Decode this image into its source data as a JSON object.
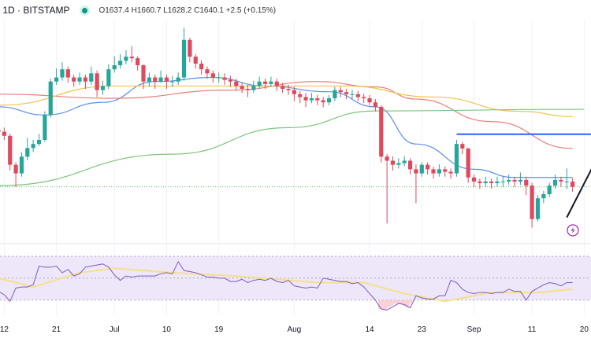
{
  "header": {
    "symbol_text": "· 1D · BITSTAMP",
    "ohlc_text": "O1637.4 H1660.7 L1628.2 C1640.1 +2.5 (+0.15%)",
    "status_dot_color": "#089981"
  },
  "chart_data": {
    "type": "candlestick",
    "title": "· 1D · BITSTAMP",
    "x_ticks": [
      {
        "label": "12",
        "i": 1
      },
      {
        "label": "21",
        "i": 10
      },
      {
        "label": "Jul",
        "i": 20
      },
      {
        "label": "10",
        "i": 29
      },
      {
        "label": "19",
        "i": 38
      },
      {
        "label": "Aug",
        "i": 51
      },
      {
        "label": "14",
        "i": 64
      },
      {
        "label": "23",
        "i": 73
      },
      {
        "label": "Sep",
        "i": 82
      },
      {
        "label": "11",
        "i": 92
      },
      {
        "label": "20",
        "i": 101
      }
    ],
    "price_range": [
      1520,
      2040
    ],
    "first_open": 1780,
    "close": [
      1775,
      1765,
      1694,
      1673,
      1714,
      1735,
      1745,
      1755,
      1816,
      1898,
      1908,
      1928,
      1908,
      1898,
      1908,
      1898,
      1918,
      1877,
      1887,
      1928,
      1938,
      1949,
      1959,
      1955,
      1938,
      1898,
      1908,
      1898,
      1908,
      1898,
      1898,
      1908,
      2000,
      1959,
      1942,
      1928,
      1918,
      1908,
      1908,
      1902,
      1898,
      1887,
      1880,
      1877,
      1887,
      1898,
      1892,
      1898,
      1887,
      1880,
      1877,
      1867,
      1860,
      1852,
      1857,
      1852,
      1847,
      1857,
      1877,
      1872,
      1867,
      1867,
      1860,
      1857,
      1847,
      1836,
      1714,
      1704,
      1694,
      1698,
      1704,
      1683,
      1673,
      1694,
      1683,
      1673,
      1683,
      1677,
      1673,
      1745,
      1734,
      1663,
      1653,
      1649,
      1653,
      1649,
      1653,
      1653,
      1657,
      1653,
      1657,
      1643,
      1561,
      1612,
      1622,
      1643,
      1657,
      1653,
      1653,
      1640
    ],
    "high": [
      1790,
      1785,
      1770,
      1700,
      1725,
      1760,
      1755,
      1770,
      1825,
      1905,
      1930,
      1945,
      1935,
      1915,
      1920,
      1915,
      1935,
      1925,
      1900,
      1940,
      1960,
      1965,
      1975,
      1985,
      1960,
      1940,
      1920,
      1915,
      1925,
      1915,
      1912,
      1920,
      2030,
      2005,
      1965,
      1950,
      1935,
      1925,
      1920,
      1918,
      1912,
      1905,
      1895,
      1890,
      1900,
      1910,
      1905,
      1910,
      1905,
      1895,
      1890,
      1885,
      1875,
      1870,
      1870,
      1865,
      1860,
      1865,
      1885,
      1885,
      1880,
      1878,
      1875,
      1868,
      1865,
      1855,
      1840,
      1720,
      1715,
      1710,
      1715,
      1710,
      1695,
      1700,
      1700,
      1690,
      1695,
      1690,
      1685,
      1755,
      1750,
      1735,
      1670,
      1660,
      1665,
      1660,
      1665,
      1665,
      1670,
      1665,
      1675,
      1665,
      1650,
      1620,
      1630,
      1650,
      1670,
      1665,
      1685,
      1661
    ],
    "low": [
      1765,
      1755,
      1680,
      1640,
      1665,
      1705,
      1725,
      1740,
      1750,
      1810,
      1890,
      1900,
      1895,
      1885,
      1890,
      1880,
      1890,
      1860,
      1865,
      1880,
      1920,
      1930,
      1940,
      1945,
      1925,
      1880,
      1885,
      1880,
      1895,
      1880,
      1885,
      1890,
      1900,
      1945,
      1930,
      1915,
      1905,
      1895,
      1895,
      1890,
      1885,
      1875,
      1870,
      1860,
      1870,
      1880,
      1880,
      1885,
      1875,
      1870,
      1865,
      1850,
      1845,
      1835,
      1845,
      1840,
      1835,
      1840,
      1850,
      1860,
      1855,
      1855,
      1850,
      1845,
      1840,
      1825,
      1700,
      1550,
      1680,
      1685,
      1690,
      1670,
      1600,
      1665,
      1670,
      1660,
      1665,
      1665,
      1660,
      1665,
      1720,
      1650,
      1640,
      1635,
      1640,
      1635,
      1640,
      1640,
      1645,
      1640,
      1645,
      1620,
      1540,
      1555,
      1600,
      1615,
      1635,
      1640,
      1635,
      1628
    ],
    "moving_averages": [
      {
        "color": "#5b8def",
        "points": [
          [
            0,
            1836
          ],
          [
            8,
            1816
          ],
          [
            18,
            1847
          ],
          [
            27,
            1898
          ],
          [
            37,
            1908
          ],
          [
            46,
            1887
          ],
          [
            57,
            1873
          ],
          [
            65,
            1836
          ],
          [
            72,
            1745
          ],
          [
            82,
            1683
          ],
          [
            89,
            1663
          ],
          [
            99,
            1663
          ]
        ]
      },
      {
        "color": "#ef7b7b",
        "points": [
          [
            0,
            1867
          ],
          [
            20,
            1857
          ],
          [
            40,
            1877
          ],
          [
            55,
            1898
          ],
          [
            65,
            1885
          ],
          [
            72,
            1855
          ],
          [
            85,
            1800
          ],
          [
            99,
            1734
          ]
        ]
      },
      {
        "color": "#f2c14e",
        "points": [
          [
            0,
            1840
          ],
          [
            20,
            1887
          ],
          [
            60,
            1887
          ],
          [
            75,
            1860
          ],
          [
            90,
            1825
          ],
          [
            99,
            1812
          ]
        ]
      },
      {
        "color": "#7cc47c",
        "points": [
          [
            0,
            1643
          ],
          [
            30,
            1720
          ],
          [
            50,
            1785
          ],
          [
            65,
            1826
          ],
          [
            101,
            1830
          ]
        ]
      }
    ],
    "horizontal_line": {
      "price": 1769,
      "from_i": 79,
      "color": "#2962ff"
    },
    "last_price_line": {
      "price": 1640,
      "color": "#4caf50"
    },
    "trend_line": {
      "points": [
        [
          98,
          1565
        ],
        [
          102.5,
          1690
        ]
      ],
      "color": "#131722"
    },
    "rsi": {
      "levels": [
        70,
        50,
        30
      ],
      "range": [
        17,
        80
      ],
      "line_color": "#7e57c2",
      "ma_color": "#f5e08a",
      "values": [
        38,
        35,
        29,
        41,
        42,
        42,
        44,
        61,
        60,
        60,
        61,
        55,
        58,
        52,
        54,
        60,
        61,
        62,
        63,
        60,
        53,
        48,
        52,
        51,
        52,
        52,
        52,
        52,
        54,
        55,
        54,
        65,
        57,
        56,
        55,
        53,
        51,
        51,
        50,
        50,
        47,
        47,
        49,
        46,
        48,
        49,
        48,
        50,
        47,
        46,
        48,
        43,
        42,
        41,
        42,
        41,
        50,
        49,
        48,
        47,
        47,
        45,
        46,
        42,
        36,
        30,
        22,
        21,
        24,
        27,
        26,
        23,
        34,
        32,
        31,
        31,
        34,
        34,
        48,
        46,
        40,
        37,
        36,
        37,
        37,
        36,
        37,
        37,
        40,
        38,
        38,
        30,
        38,
        41,
        44,
        46,
        45,
        43,
        46,
        46
      ],
      "ma_points": [
        [
          0,
          50
        ],
        [
          6,
          42
        ],
        [
          14,
          55
        ],
        [
          20,
          59
        ],
        [
          30,
          55
        ],
        [
          41,
          52
        ],
        [
          55,
          46
        ],
        [
          63,
          46
        ],
        [
          70,
          36
        ],
        [
          77,
          29
        ],
        [
          85,
          37
        ],
        [
          93,
          37
        ],
        [
          99,
          40
        ]
      ]
    },
    "colors": {
      "up": "#26a69a",
      "down": "#e0485c",
      "rsi_bg": "#ede7f9"
    },
    "grid": true
  }
}
